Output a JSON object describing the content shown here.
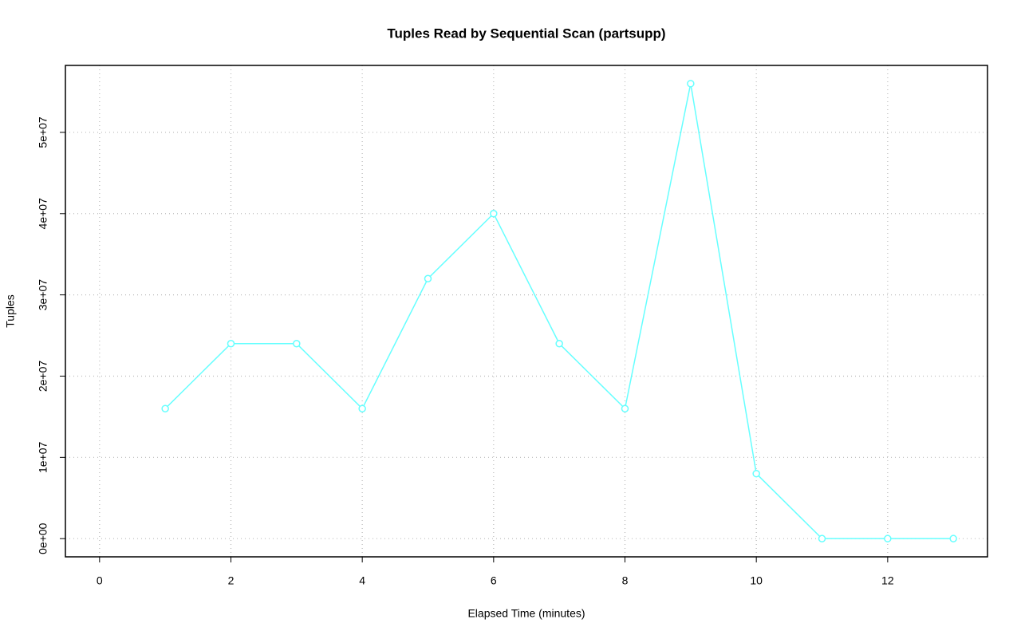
{
  "chart_data": {
    "type": "line",
    "title": "Tuples Read by Sequential Scan (partsupp)",
    "x_label": "Elapsed Time (minutes)",
    "y_label": "Tuples",
    "x": [
      1,
      2,
      3,
      4,
      5,
      6,
      7,
      8,
      9,
      10,
      11,
      12,
      13
    ],
    "series": [
      {
        "name": "partsupp",
        "color": "#66ffff",
        "values": [
          16000000,
          24000000,
          24000000,
          16000000,
          32000000,
          40000000,
          24000000,
          16000000,
          56000000,
          8000000,
          0,
          0,
          0
        ]
      }
    ],
    "xlim": [
      -0.52,
      13.52
    ],
    "ylim": [
      -2240000,
      58240000
    ],
    "xticks": [
      0,
      2,
      4,
      6,
      8,
      10,
      12
    ],
    "yticks": [
      {
        "value": 0,
        "label": "0e+00"
      },
      {
        "value": 10000000,
        "label": "1e+07"
      },
      {
        "value": 20000000,
        "label": "2e+07"
      },
      {
        "value": 30000000,
        "label": "3e+07"
      },
      {
        "value": 40000000,
        "label": "4e+07"
      },
      {
        "value": 50000000,
        "label": "5e+07"
      }
    ],
    "grid": true
  }
}
